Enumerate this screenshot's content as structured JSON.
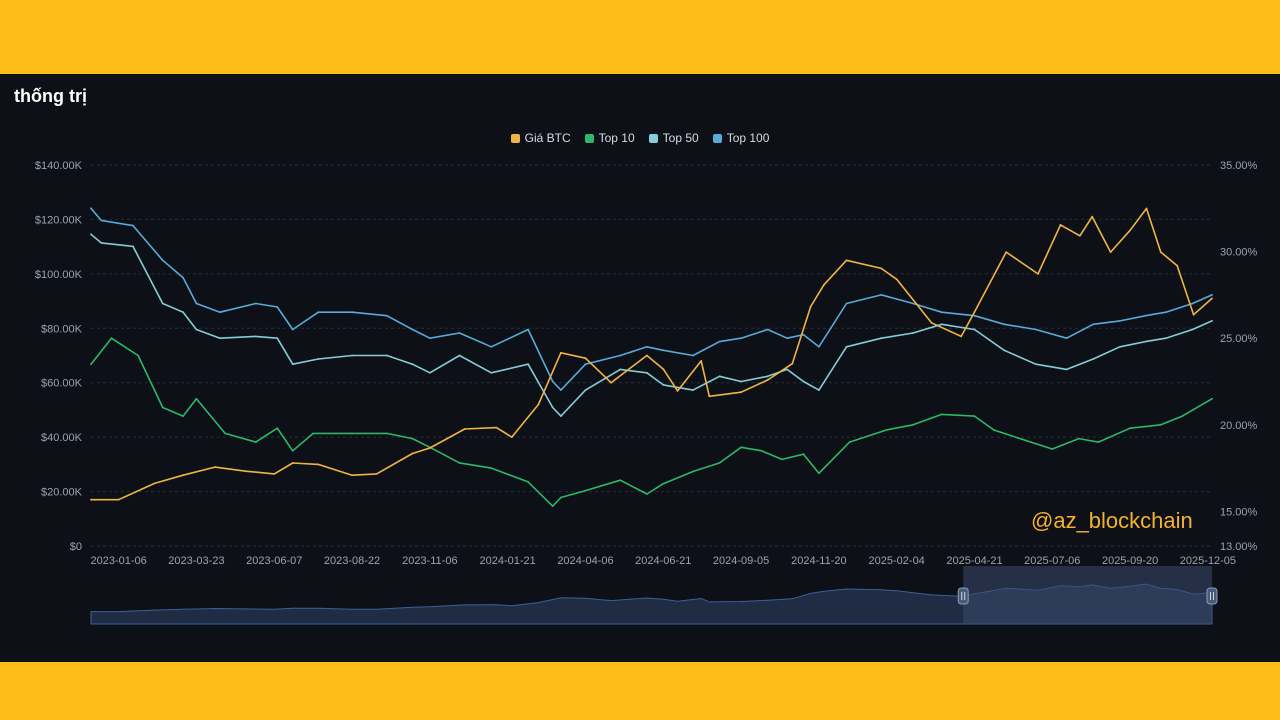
{
  "title": "thống trị",
  "watermark": "@az_blockchain",
  "colors": {
    "btc": "#f0b445",
    "top10": "#2db768",
    "top50": "#86ccd8",
    "top100": "#5aa9d8",
    "grid": "#262d3a",
    "axis_text": "#9aa3b2",
    "navigator_fill": "#1f2c44",
    "navigator_line": "#3d5f9a",
    "navigator_selection": "#3a4a6e"
  },
  "legend": [
    {
      "label": "Giá BTC",
      "color": "#f0b445"
    },
    {
      "label": "Top 10",
      "color": "#2db768"
    },
    {
      "label": "Top 50",
      "color": "#86ccd8"
    },
    {
      "label": "Top 100",
      "color": "#5aa9d8"
    }
  ],
  "chart_data": {
    "type": "line",
    "title": "thống trị",
    "grid": true,
    "legend_position": "top-center",
    "x_tick_labels": [
      "2023-01-06",
      "2023-03-23",
      "2023-06-07",
      "2023-08-22",
      "2023-11-06",
      "2024-01-21",
      "2024-04-06",
      "2024-06-21",
      "2024-09-05",
      "2024-11-20",
      "2025-02-04",
      "2025-04-21",
      "2025-07-06",
      "2025-09-20",
      "2025-12-05"
    ],
    "x_range": [
      "2022-12-10",
      "2025-12-09"
    ],
    "y_left": {
      "min": 0,
      "max": 140000,
      "tick_labels": [
        "$0",
        "$20.00K",
        "$40.00K",
        "$60.00K",
        "$80.00K",
        "$100.00K",
        "$120.00K",
        "$140.00K"
      ],
      "tick_values": [
        0,
        20000,
        40000,
        60000,
        80000,
        100000,
        120000,
        140000
      ]
    },
    "y_right": {
      "min": 13,
      "max": 35,
      "tick_labels": [
        "13.00%",
        "15.00%",
        "20.00%",
        "25.00%",
        "30.00%",
        "35.00%"
      ],
      "tick_values": [
        13,
        15,
        20,
        25,
        30,
        35
      ]
    },
    "series": [
      {
        "name": "Giá BTC",
        "axis": "left",
        "x": [
          "2022-12-10",
          "2023-01-06",
          "2023-02-10",
          "2023-03-10",
          "2023-04-10",
          "2023-05-10",
          "2023-06-07",
          "2023-06-25",
          "2023-07-20",
          "2023-08-22",
          "2023-09-15",
          "2023-10-20",
          "2023-11-06",
          "2023-12-10",
          "2024-01-10",
          "2024-01-25",
          "2024-02-20",
          "2024-03-13",
          "2024-04-06",
          "2024-05-01",
          "2024-06-05",
          "2024-06-21",
          "2024-07-05",
          "2024-07-28",
          "2024-08-05",
          "2024-09-05",
          "2024-10-01",
          "2024-10-25",
          "2024-11-12",
          "2024-11-25",
          "2024-12-17",
          "2025-01-20",
          "2025-02-04",
          "2025-03-10",
          "2025-04-08",
          "2025-04-21",
          "2025-05-22",
          "2025-06-22",
          "2025-07-14",
          "2025-08-02",
          "2025-08-14",
          "2025-09-01",
          "2025-09-20",
          "2025-10-06",
          "2025-10-20",
          "2025-11-05",
          "2025-11-21",
          "2025-12-09"
        ],
        "values": [
          17000,
          17000,
          23000,
          26000,
          29000,
          27500,
          26500,
          30500,
          30000,
          26000,
          26500,
          34000,
          36000,
          43000,
          43500,
          40000,
          52000,
          71000,
          69000,
          60000,
          70000,
          65000,
          57000,
          68000,
          55000,
          56500,
          61000,
          67000,
          88000,
          96000,
          105000,
          102000,
          98000,
          82000,
          77000,
          86000,
          108000,
          100000,
          118000,
          114000,
          121000,
          108000,
          116000,
          124000,
          108000,
          103000,
          85000,
          91000
        ]
      },
      {
        "name": "Top 10",
        "axis": "right",
        "x": [
          "2022-12-10",
          "2022-12-30",
          "2023-01-25",
          "2023-02-18",
          "2023-03-10",
          "2023-03-23",
          "2023-04-20",
          "2023-05-20",
          "2023-06-10",
          "2023-06-25",
          "2023-07-15",
          "2023-08-22",
          "2023-09-25",
          "2023-10-20",
          "2023-11-06",
          "2023-12-05",
          "2024-01-05",
          "2024-02-10",
          "2024-03-05",
          "2024-03-13",
          "2024-04-06",
          "2024-05-10",
          "2024-06-05",
          "2024-06-21",
          "2024-07-20",
          "2024-08-15",
          "2024-09-05",
          "2024-09-25",
          "2024-10-15",
          "2024-11-05",
          "2024-11-20",
          "2024-12-20",
          "2025-01-25",
          "2025-02-20",
          "2025-03-20",
          "2025-04-21",
          "2025-05-10",
          "2025-06-15",
          "2025-07-06",
          "2025-08-01",
          "2025-08-20",
          "2025-09-20",
          "2025-10-20",
          "2025-11-10",
          "2025-12-09"
        ],
        "values": [
          23.5,
          25.0,
          24.0,
          21.0,
          20.5,
          21.5,
          19.5,
          19.0,
          19.8,
          18.5,
          19.5,
          19.5,
          19.5,
          19.2,
          18.7,
          17.8,
          17.5,
          16.7,
          15.3,
          15.8,
          16.2,
          16.8,
          16.0,
          16.6,
          17.3,
          17.8,
          18.7,
          18.5,
          18.0,
          18.3,
          17.2,
          19.0,
          19.7,
          20.0,
          20.6,
          20.5,
          19.7,
          19.0,
          18.6,
          19.2,
          19.0,
          19.8,
          20.0,
          20.5,
          21.5
        ]
      },
      {
        "name": "Top 50",
        "axis": "right",
        "x": [
          "2022-12-10",
          "2022-12-20",
          "2023-01-20",
          "2023-02-18",
          "2023-03-10",
          "2023-03-23",
          "2023-04-15",
          "2023-05-20",
          "2023-06-10",
          "2023-06-25",
          "2023-07-20",
          "2023-08-22",
          "2023-09-25",
          "2023-10-20",
          "2023-11-06",
          "2023-12-05",
          "2024-01-05",
          "2024-02-10",
          "2024-03-05",
          "2024-03-13",
          "2024-04-06",
          "2024-05-10",
          "2024-06-05",
          "2024-06-21",
          "2024-07-20",
          "2024-08-15",
          "2024-09-05",
          "2024-10-01",
          "2024-10-20",
          "2024-11-05",
          "2024-11-20",
          "2024-12-17",
          "2025-01-20",
          "2025-02-20",
          "2025-03-20",
          "2025-04-21",
          "2025-05-20",
          "2025-06-20",
          "2025-07-20",
          "2025-08-15",
          "2025-09-10",
          "2025-10-05",
          "2025-10-25",
          "2025-11-20",
          "2025-12-09"
        ],
        "values": [
          31.0,
          30.5,
          30.3,
          27.0,
          26.5,
          25.5,
          25.0,
          25.1,
          25.0,
          23.5,
          23.8,
          24.0,
          24.0,
          23.5,
          23.0,
          24.0,
          23.0,
          23.5,
          21.0,
          20.5,
          22.0,
          23.2,
          23.0,
          22.3,
          22.0,
          22.8,
          22.5,
          22.8,
          23.2,
          22.5,
          22.0,
          24.5,
          25.0,
          25.3,
          25.8,
          25.5,
          24.3,
          23.5,
          23.2,
          23.8,
          24.5,
          24.8,
          25.0,
          25.5,
          26.0
        ]
      },
      {
        "name": "Top 100",
        "axis": "right",
        "x": [
          "2022-12-10",
          "2022-12-20",
          "2023-01-20",
          "2023-02-18",
          "2023-03-10",
          "2023-03-23",
          "2023-04-15",
          "2023-05-20",
          "2023-06-10",
          "2023-06-25",
          "2023-07-20",
          "2023-08-22",
          "2023-09-25",
          "2023-10-20",
          "2023-11-06",
          "2023-12-05",
          "2024-01-05",
          "2024-02-10",
          "2024-03-05",
          "2024-03-13",
          "2024-04-06",
          "2024-05-10",
          "2024-06-05",
          "2024-06-21",
          "2024-07-20",
          "2024-08-15",
          "2024-09-05",
          "2024-10-01",
          "2024-10-20",
          "2024-11-05",
          "2024-11-20",
          "2024-12-17",
          "2025-01-20",
          "2025-02-20",
          "2025-03-20",
          "2025-04-21",
          "2025-05-20",
          "2025-06-20",
          "2025-07-20",
          "2025-08-15",
          "2025-09-10",
          "2025-10-05",
          "2025-10-25",
          "2025-11-20",
          "2025-12-09"
        ],
        "values": [
          32.5,
          31.8,
          31.5,
          29.5,
          28.5,
          27.0,
          26.5,
          27.0,
          26.8,
          25.5,
          26.5,
          26.5,
          26.3,
          25.5,
          25.0,
          25.3,
          24.5,
          25.5,
          22.5,
          22.0,
          23.5,
          24.0,
          24.5,
          24.3,
          24.0,
          24.8,
          25.0,
          25.5,
          25.0,
          25.2,
          24.5,
          27.0,
          27.5,
          27.0,
          26.5,
          26.3,
          25.8,
          25.5,
          25.0,
          25.8,
          26.0,
          26.3,
          26.5,
          27.0,
          27.5
        ]
      }
    ],
    "navigator": {
      "range": [
        "2022-12-10",
        "2025-12-09"
      ],
      "selection": [
        "2025-04-10",
        "2025-12-09"
      ]
    }
  }
}
